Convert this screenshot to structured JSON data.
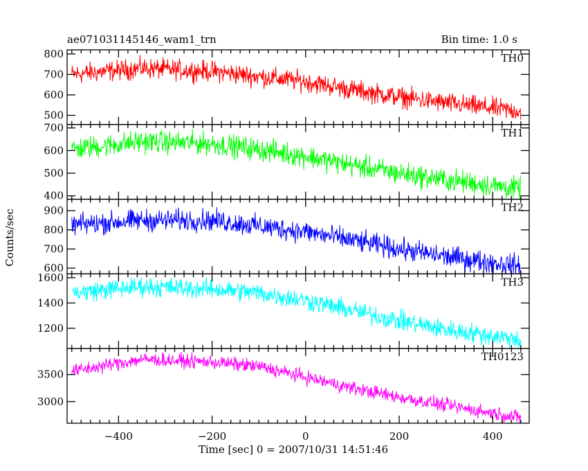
{
  "header": {
    "title": "ae071031145146_wam1_trn",
    "bin_time": "Bin time: 1.0 s"
  },
  "chart_data": {
    "type": "line",
    "title": "ae071031145146_wam1_trn",
    "xlabel": "Time [sec] 0 = 2007/10/31 14:51:46",
    "ylabel": "Counts/sec",
    "xlim": [
      -510,
      478
    ],
    "xticks": [
      -400,
      -200,
      0,
      200,
      400
    ],
    "grid": false,
    "time_range": [
      -500,
      460
    ],
    "panels": [
      {
        "name": "TH0",
        "color": "#ff0000",
        "ylim": [
          455,
          820
        ],
        "yticks": [
          500,
          600,
          700,
          800
        ],
        "level": [
          [
            -500,
            700
          ],
          [
            -350,
            730
          ],
          [
            -200,
            715
          ],
          [
            -100,
            690
          ],
          [
            0,
            665
          ],
          [
            100,
            625
          ],
          [
            200,
            590
          ],
          [
            300,
            560
          ],
          [
            460,
            520
          ]
        ],
        "noise": 35
      },
      {
        "name": "TH1",
        "color": "#00ff00",
        "ylim": [
          385,
          715
        ],
        "yticks": [
          400,
          500,
          600,
          700
        ],
        "level": [
          [
            -500,
            605
          ],
          [
            -350,
            640
          ],
          [
            -200,
            630
          ],
          [
            -100,
            605
          ],
          [
            0,
            575
          ],
          [
            100,
            535
          ],
          [
            200,
            500
          ],
          [
            300,
            470
          ],
          [
            460,
            430
          ]
        ],
        "noise": 35
      },
      {
        "name": "TH2",
        "color": "#0000ff",
        "ylim": [
          570,
          960
        ],
        "yticks": [
          600,
          700,
          800,
          900
        ],
        "level": [
          [
            -500,
            825
          ],
          [
            -350,
            850
          ],
          [
            -200,
            850
          ],
          [
            -100,
            820
          ],
          [
            0,
            790
          ],
          [
            100,
            745
          ],
          [
            200,
            700
          ],
          [
            300,
            660
          ],
          [
            460,
            610
          ]
        ],
        "noise": 40
      },
      {
        "name": "TH3",
        "color": "#00ffff",
        "ylim": [
          1040,
          1630
        ],
        "yticks": [
          1200,
          1400,
          1600
        ],
        "level": [
          [
            -500,
            1480
          ],
          [
            -350,
            1530
          ],
          [
            -200,
            1510
          ],
          [
            -100,
            1480
          ],
          [
            0,
            1420
          ],
          [
            100,
            1340
          ],
          [
            200,
            1260
          ],
          [
            300,
            1190
          ],
          [
            460,
            1110
          ]
        ],
        "noise": 55
      },
      {
        "name": "TH0123",
        "color": "#ff00ff",
        "ylim": [
          2600,
          3980
        ],
        "yticks": [
          3000,
          3500
        ],
        "level": [
          [
            -500,
            3560
          ],
          [
            -350,
            3780
          ],
          [
            -200,
            3730
          ],
          [
            -100,
            3650
          ],
          [
            0,
            3450
          ],
          [
            100,
            3250
          ],
          [
            200,
            3080
          ],
          [
            300,
            2930
          ],
          [
            460,
            2700
          ]
        ],
        "noise": 90
      }
    ]
  }
}
